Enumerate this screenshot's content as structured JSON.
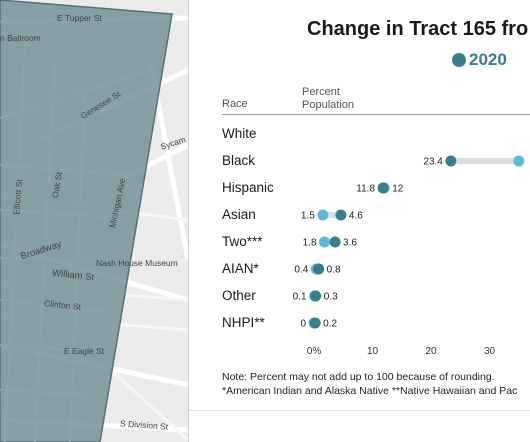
{
  "map": {
    "labels": {
      "e_tupper": "E Tupper St",
      "ballroom": "n Ballroom",
      "genesee": "Genesee St",
      "sycamore": "Sycam",
      "ellicott": "Ellicott St",
      "oak": "Oak St",
      "michigan": "Michigan Ave",
      "broadway": "Broadway",
      "nash": "Nash House Museum",
      "william": "William St",
      "clinton": "Clinton St",
      "eagle": "E Eagle St",
      "division": "S Division St"
    }
  },
  "panel": {
    "title": "Change in Tract 165 fro",
    "legend_year": "2020",
    "header_race": "Race",
    "header_percent": [
      "Percent",
      "Population"
    ],
    "note_line1": "Note: Percent may not add up to 100 because of rounding.",
    "note_line2": "*American Indian and Alaska Native   **Native Hawaiian and Pac"
  },
  "chart_data": {
    "type": "dot",
    "x_ticks": [
      "0%",
      "10",
      "20",
      "30"
    ],
    "x_tick_values": [
      0,
      10,
      20,
      30
    ],
    "colors": {
      "dark": "#3a7d8c",
      "light": "#5fb8d6",
      "connector": "#dddddd"
    },
    "rows": [
      {
        "race": "White",
        "dark": null,
        "light": null,
        "dark_label": "",
        "light_label": ""
      },
      {
        "race": "Black",
        "dark": 23.4,
        "light": 35.0,
        "dark_label": "23.4",
        "light_label": ""
      },
      {
        "race": "Hispanic",
        "dark": 11.8,
        "light": 12,
        "dark_label": "11.8",
        "light_label": "12"
      },
      {
        "race": "Asian",
        "dark": 4.6,
        "light": 1.5,
        "dark_label": "4.6",
        "light_label": "1.5"
      },
      {
        "race": "Two***",
        "dark": 3.6,
        "light": 1.8,
        "dark_label": "3.6",
        "light_label": "1.8"
      },
      {
        "race": "AIAN*",
        "dark": 0.8,
        "light": 0.4,
        "dark_label": "0.8",
        "light_label": "0.4"
      },
      {
        "race": "Other",
        "dark": 0.3,
        "light": 0.1,
        "dark_label": "0.3",
        "light_label": "0.1"
      },
      {
        "race": "NHPI**",
        "dark": 0.2,
        "light": 0,
        "dark_label": "0.2",
        "light_label": "0"
      }
    ]
  }
}
